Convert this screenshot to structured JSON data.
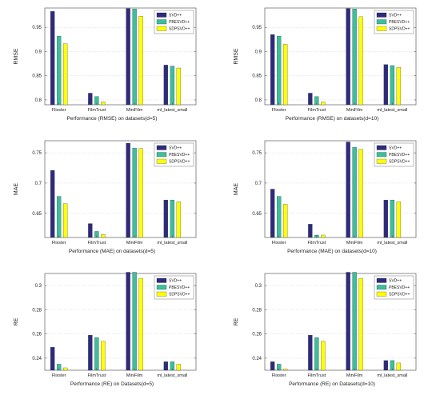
{
  "colors": {
    "SVD++": "#2e2a7d",
    "PBESVD++": "#3bbf9c",
    "SDPSVD++": "#ffff00"
  },
  "chart_data": [
    {
      "type": "bar",
      "caption": "Performance (RMSE) on datasets(d=5)",
      "ylabel": "RMSE",
      "categories": [
        "Flixster",
        "FilmTrust",
        "MiniFilm",
        "ml_latest_small"
      ],
      "series": [
        {
          "name": "SVD++",
          "values": [
            0.983,
            0.814,
            0.989,
            0.872
          ]
        },
        {
          "name": "PBESVD++",
          "values": [
            0.932,
            0.807,
            0.988,
            0.87
          ]
        },
        {
          "name": "SDPSVD++",
          "values": [
            0.916,
            0.796,
            0.973,
            0.866
          ]
        }
      ],
      "ylim": [
        0.79,
        0.99
      ],
      "yticks": [
        0.8,
        0.85,
        0.9,
        0.95
      ],
      "ytick_labels": [
        "0.8",
        "0.85",
        "0.9",
        "0.95"
      ],
      "legend": "top-right"
    },
    {
      "type": "bar",
      "caption": "Performance (RMSE) on datasets(d=10)",
      "ylabel": "RMSE",
      "categories": [
        "Flixster",
        "FilmTrust",
        "MiniFilm",
        "ml_latest_small"
      ],
      "series": [
        {
          "name": "SVD++",
          "values": [
            0.935,
            0.814,
            0.989,
            0.873
          ]
        },
        {
          "name": "PBESVD++",
          "values": [
            0.932,
            0.807,
            0.988,
            0.871
          ]
        },
        {
          "name": "SDPSVD++",
          "values": [
            0.915,
            0.796,
            0.972,
            0.867
          ]
        }
      ],
      "ylim": [
        0.79,
        0.99
      ],
      "yticks": [
        0.8,
        0.85,
        0.9,
        0.95
      ],
      "ytick_labels": [
        "0.8",
        "0.85",
        "0.9",
        "0.95"
      ],
      "legend": "top-right"
    },
    {
      "type": "bar",
      "caption": "Performance (MAE) on datasets(d=5)",
      "ylabel": "MAE",
      "categories": [
        "Flixster",
        "FilmTrust",
        "MiniFilm",
        "ml_latest_small"
      ],
      "series": [
        {
          "name": "SVD++",
          "values": [
            0.721,
            0.633,
            0.766,
            0.672
          ]
        },
        {
          "name": "PBESVD++",
          "values": [
            0.678,
            0.62,
            0.758,
            0.672
          ]
        },
        {
          "name": "SDPSVD++",
          "values": [
            0.666,
            0.615,
            0.757,
            0.669
          ]
        }
      ],
      "ylim": [
        0.61,
        0.77
      ],
      "yticks": [
        0.65,
        0.7,
        0.75
      ],
      "ytick_labels": [
        "0.65",
        "0.7",
        "0.75"
      ],
      "legend": "top-right"
    },
    {
      "type": "bar",
      "caption": "Performance (MAE) on datasets(d=10)",
      "ylabel": "MAE",
      "categories": [
        "Flixster",
        "FilmTrust",
        "MiniFilm",
        "ml_latest_small"
      ],
      "series": [
        {
          "name": "SVD++",
          "values": [
            0.69,
            0.632,
            0.768,
            0.672
          ]
        },
        {
          "name": "PBESVD++",
          "values": [
            0.678,
            0.614,
            0.759,
            0.672
          ]
        },
        {
          "name": "SDPSVD++",
          "values": [
            0.665,
            0.614,
            0.756,
            0.669
          ]
        }
      ],
      "ylim": [
        0.61,
        0.77
      ],
      "yticks": [
        0.65,
        0.7,
        0.75
      ],
      "ytick_labels": [
        "0.65",
        "0.7",
        "0.75"
      ],
      "legend": "top-right"
    },
    {
      "type": "bar",
      "caption": "Performance (RE) on Datasets(d=5)",
      "ylabel": "RE",
      "categories": [
        "Flixster",
        "FilmTrust",
        "MiniFilm",
        "ml_latest_small"
      ],
      "series": [
        {
          "name": "SVD++",
          "values": [
            0.249,
            0.259,
            0.311,
            0.237
          ]
        },
        {
          "name": "PBESVD++",
          "values": [
            0.235,
            0.257,
            0.311,
            0.237
          ]
        },
        {
          "name": "SDPSVD++",
          "values": [
            0.232,
            0.254,
            0.306,
            0.235
          ]
        }
      ],
      "ylim": [
        0.23,
        0.31
      ],
      "yticks": [
        0.24,
        0.26,
        0.28,
        0.3
      ],
      "ytick_labels": [
        "0.24",
        "0.26",
        "0.28",
        "0.3"
      ],
      "legend": "top-right"
    },
    {
      "type": "bar",
      "caption": "Performance (RE) on Datasets(d=10)",
      "ylabel": "RE",
      "categories": [
        "Flixster",
        "FilmTrust",
        "MiniFilm",
        "ml_latest_small"
      ],
      "series": [
        {
          "name": "SVD++",
          "values": [
            0.237,
            0.259,
            0.311,
            0.238
          ]
        },
        {
          "name": "PBESVD++",
          "values": [
            0.235,
            0.257,
            0.311,
            0.238
          ]
        },
        {
          "name": "SDPSVD++",
          "values": [
            0.231,
            0.254,
            0.306,
            0.236
          ]
        }
      ],
      "ylim": [
        0.23,
        0.31
      ],
      "yticks": [
        0.24,
        0.26,
        0.28,
        0.3
      ],
      "ytick_labels": [
        "0.24",
        "0.26",
        "0.28",
        "0.3"
      ],
      "legend": "top-right"
    }
  ]
}
